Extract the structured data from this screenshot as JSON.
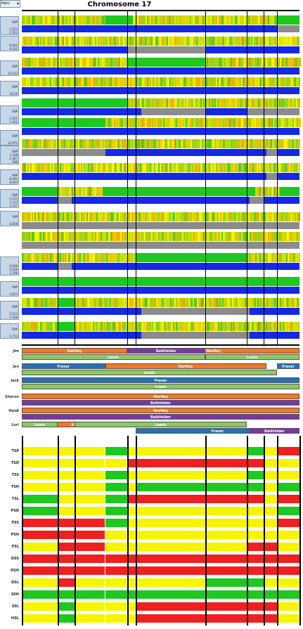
{
  "header": {
    "selector_value": "Pairs",
    "title": "Chromosome 17"
  },
  "colors": {
    "green": "#1ec81e",
    "yellow": "#f5f500",
    "red": "#f02020",
    "blue": "#1428e6",
    "gray": "#8c8c8c",
    "orange": "#f07828",
    "lightgreen": "#8cc864",
    "purple": "#7838a0",
    "steel": "#2870b4"
  },
  "side_panels": [
    {
      "lines": [
        "",
        "SNP",
        "",
        "1,523",
        "1,523"
      ]
    },
    {
      "lines": [
        "",
        "",
        "8,003",
        "4,032"
      ]
    },
    {
      "lines": [
        "",
        "SNP",
        "",
        "13,123"
      ]
    },
    {
      "lines": [
        "",
        "SNP",
        "",
        "18,28"
      ]
    },
    {
      "lines": [
        "",
        "SNP",
        "",
        "1,201",
        "1,201"
      ]
    },
    {
      "lines": [
        "",
        "SNP",
        "",
        "12,872"
      ]
    },
    {
      "lines": [
        "",
        "SNP",
        "1,318",
        "2,387",
        "288"
      ]
    },
    {
      "lines": [
        "",
        "SNP",
        "8,493",
        "8,493"
      ]
    },
    {
      "lines": [
        "",
        "SNP",
        "1,133",
        "1,133",
        "1,217"
      ]
    },
    {
      "lines": [
        "",
        "SNP",
        "",
        "8,828"
      ]
    },
    {
      "lines": [
        "",
        "",
        "6,838",
        "6,538",
        "2,338"
      ]
    },
    {
      "lines": [
        "",
        "SNP",
        "",
        "3,813"
      ]
    },
    {
      "lines": [
        "",
        "SNP",
        "",
        "3,213",
        "1,328"
      ]
    },
    {
      "lines": [
        "",
        "SNP",
        "",
        "1,713"
      ]
    }
  ],
  "people": [
    {
      "name": "Jim",
      "bars": [
        [
          "Hartley",
          "orange"
        ],
        [
          "Lewis",
          "lightgreen"
        ],
        [
          "Balkfelder",
          "purple"
        ]
      ]
    },
    {
      "name": "Jen",
      "bars": [
        [
          "Fraser",
          "steel"
        ],
        [
          "Lewis",
          "lightgreen"
        ],
        [
          "Hartley",
          "orange"
        ]
      ]
    },
    {
      "name": "Jack",
      "bars": [
        [
          "Fraser",
          "steel"
        ],
        [
          "Lewis",
          "lightgreen"
        ]
      ]
    },
    {
      "name": "Sharon",
      "bars": [
        [
          "Hartley",
          "orange"
        ],
        [
          "Balkfelder",
          "purple"
        ]
      ]
    },
    {
      "name": "Heidi",
      "bars": [
        [
          "Hartley",
          "orange"
        ],
        [
          "Balkfelder",
          "purple"
        ]
      ]
    },
    {
      "name": "Lori",
      "bars": [
        [
          "Hartley",
          "orange"
        ],
        [
          "Fraser",
          "steel"
        ],
        [
          "Lewis",
          "lightgreen"
        ],
        [
          "Balkfelder",
          "purple"
        ]
      ]
    }
  ],
  "matrix_rows": [
    {
      "label": "TSP"
    },
    {
      "label": "TSD"
    },
    {
      "label": "TSS"
    },
    {
      "label": "TSH"
    },
    {
      "label": "TSL"
    },
    {
      "label": "PSD"
    },
    {
      "label": "PSS"
    },
    {
      "label": "PSH"
    },
    {
      "label": "PSL"
    },
    {
      "label": "DSS"
    },
    {
      "label": "DSH"
    },
    {
      "label": "DSL"
    },
    {
      "label": "SSH"
    },
    {
      "label": "SSL"
    },
    {
      "label": "HSL"
    }
  ]
}
